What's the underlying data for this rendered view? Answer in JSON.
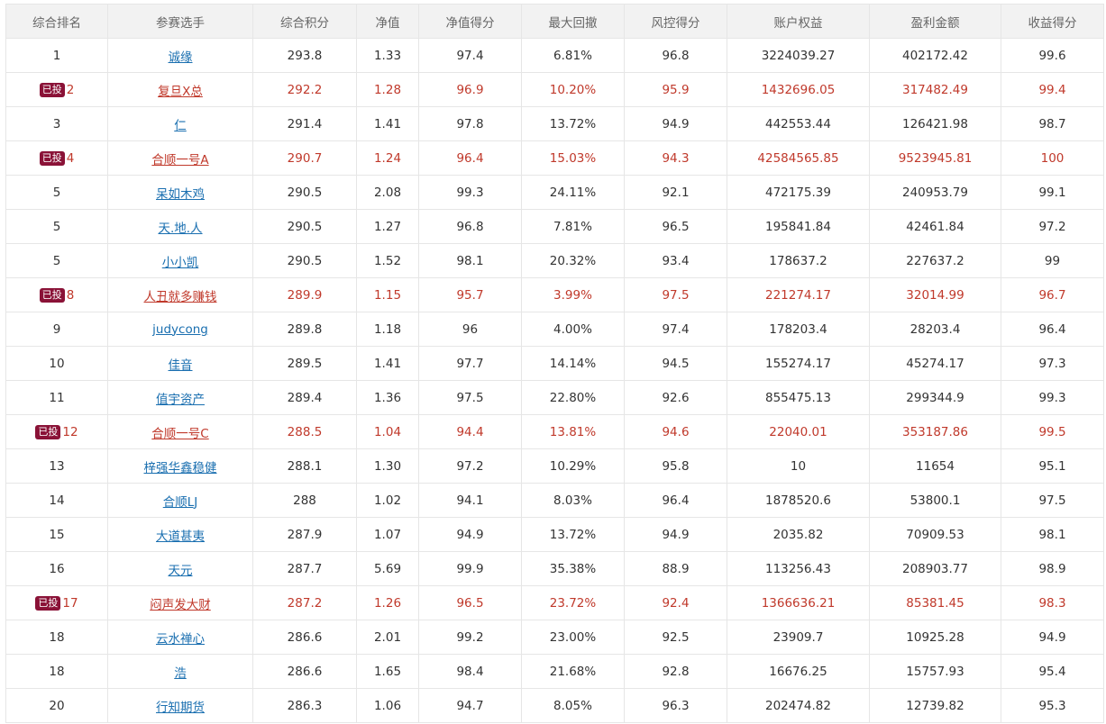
{
  "columns": [
    "综合排名",
    "参赛选手",
    "综合积分",
    "净值",
    "净值得分",
    "最大回撤",
    "风控得分",
    "账户权益",
    "盈利金额",
    "收益得分"
  ],
  "badge_label": "已投",
  "highlight_color": "#c0392b",
  "link_color": "#1a6fb0",
  "badge_color": "#8a1237",
  "rows": [
    {
      "rank": "1",
      "name": "诚缘",
      "score": "293.8",
      "nav": "1.33",
      "nav_score": "97.4",
      "max_dd": "6.81%",
      "risk_score": "96.8",
      "equity": "3224039.27",
      "profit": "402172.42",
      "return_score": "99.6",
      "invested": false
    },
    {
      "rank": "2",
      "name": "复旦X总",
      "score": "292.2",
      "nav": "1.28",
      "nav_score": "96.9",
      "max_dd": "10.20%",
      "risk_score": "95.9",
      "equity": "1432696.05",
      "profit": "317482.49",
      "return_score": "99.4",
      "invested": true
    },
    {
      "rank": "3",
      "name": "仁",
      "score": "291.4",
      "nav": "1.41",
      "nav_score": "97.8",
      "max_dd": "13.72%",
      "risk_score": "94.9",
      "equity": "442553.44",
      "profit": "126421.98",
      "return_score": "98.7",
      "invested": false
    },
    {
      "rank": "4",
      "name": "合顺一号A",
      "score": "290.7",
      "nav": "1.24",
      "nav_score": "96.4",
      "max_dd": "15.03%",
      "risk_score": "94.3",
      "equity": "42584565.85",
      "profit": "9523945.81",
      "return_score": "100",
      "invested": true
    },
    {
      "rank": "5",
      "name": "呆如木鸡",
      "score": "290.5",
      "nav": "2.08",
      "nav_score": "99.3",
      "max_dd": "24.11%",
      "risk_score": "92.1",
      "equity": "472175.39",
      "profit": "240953.79",
      "return_score": "99.1",
      "invested": false
    },
    {
      "rank": "5",
      "name": "天.地.人",
      "score": "290.5",
      "nav": "1.27",
      "nav_score": "96.8",
      "max_dd": "7.81%",
      "risk_score": "96.5",
      "equity": "195841.84",
      "profit": "42461.84",
      "return_score": "97.2",
      "invested": false
    },
    {
      "rank": "5",
      "name": "小小凯",
      "score": "290.5",
      "nav": "1.52",
      "nav_score": "98.1",
      "max_dd": "20.32%",
      "risk_score": "93.4",
      "equity": "178637.2",
      "profit": "227637.2",
      "return_score": "99",
      "invested": false
    },
    {
      "rank": "8",
      "name": "人丑就多赚钱",
      "score": "289.9",
      "nav": "1.15",
      "nav_score": "95.7",
      "max_dd": "3.99%",
      "risk_score": "97.5",
      "equity": "221274.17",
      "profit": "32014.99",
      "return_score": "96.7",
      "invested": true
    },
    {
      "rank": "9",
      "name": "judycong",
      "score": "289.8",
      "nav": "1.18",
      "nav_score": "96",
      "max_dd": "4.00%",
      "risk_score": "97.4",
      "equity": "178203.4",
      "profit": "28203.4",
      "return_score": "96.4",
      "invested": false
    },
    {
      "rank": "10",
      "name": "佳音",
      "score": "289.5",
      "nav": "1.41",
      "nav_score": "97.7",
      "max_dd": "14.14%",
      "risk_score": "94.5",
      "equity": "155274.17",
      "profit": "45274.17",
      "return_score": "97.3",
      "invested": false
    },
    {
      "rank": "11",
      "name": "值宇资产",
      "score": "289.4",
      "nav": "1.36",
      "nav_score": "97.5",
      "max_dd": "22.80%",
      "risk_score": "92.6",
      "equity": "855475.13",
      "profit": "299344.9",
      "return_score": "99.3",
      "invested": false
    },
    {
      "rank": "12",
      "name": "合顺一号C",
      "score": "288.5",
      "nav": "1.04",
      "nav_score": "94.4",
      "max_dd": "13.81%",
      "risk_score": "94.6",
      "equity": "22040.01",
      "profit": "353187.86",
      "return_score": "99.5",
      "invested": true
    },
    {
      "rank": "13",
      "name": "梓强华鑫稳健",
      "score": "288.1",
      "nav": "1.30",
      "nav_score": "97.2",
      "max_dd": "10.29%",
      "risk_score": "95.8",
      "equity": "10",
      "profit": "11654",
      "return_score": "95.1",
      "invested": false
    },
    {
      "rank": "14",
      "name": "合顺LJ",
      "score": "288",
      "nav": "1.02",
      "nav_score": "94.1",
      "max_dd": "8.03%",
      "risk_score": "96.4",
      "equity": "1878520.6",
      "profit": "53800.1",
      "return_score": "97.5",
      "invested": false
    },
    {
      "rank": "15",
      "name": "大道甚夷",
      "score": "287.9",
      "nav": "1.07",
      "nav_score": "94.9",
      "max_dd": "13.72%",
      "risk_score": "94.9",
      "equity": "2035.82",
      "profit": "70909.53",
      "return_score": "98.1",
      "invested": false
    },
    {
      "rank": "16",
      "name": "天元",
      "score": "287.7",
      "nav": "5.69",
      "nav_score": "99.9",
      "max_dd": "35.38%",
      "risk_score": "88.9",
      "equity": "113256.43",
      "profit": "208903.77",
      "return_score": "98.9",
      "invested": false
    },
    {
      "rank": "17",
      "name": "闷声发大财",
      "score": "287.2",
      "nav": "1.26",
      "nav_score": "96.5",
      "max_dd": "23.72%",
      "risk_score": "92.4",
      "equity": "1366636.21",
      "profit": "85381.45",
      "return_score": "98.3",
      "invested": true
    },
    {
      "rank": "18",
      "name": "云水禅心",
      "score": "286.6",
      "nav": "2.01",
      "nav_score": "99.2",
      "max_dd": "23.00%",
      "risk_score": "92.5",
      "equity": "23909.7",
      "profit": "10925.28",
      "return_score": "94.9",
      "invested": false
    },
    {
      "rank": "18",
      "name": "浩",
      "score": "286.6",
      "nav": "1.65",
      "nav_score": "98.4",
      "max_dd": "21.68%",
      "risk_score": "92.8",
      "equity": "16676.25",
      "profit": "15757.93",
      "return_score": "95.4",
      "invested": false
    },
    {
      "rank": "20",
      "name": "行知期货",
      "score": "286.3",
      "nav": "1.06",
      "nav_score": "94.7",
      "max_dd": "8.05%",
      "risk_score": "96.3",
      "equity": "202474.82",
      "profit": "12739.82",
      "return_score": "95.3",
      "invested": false
    }
  ]
}
